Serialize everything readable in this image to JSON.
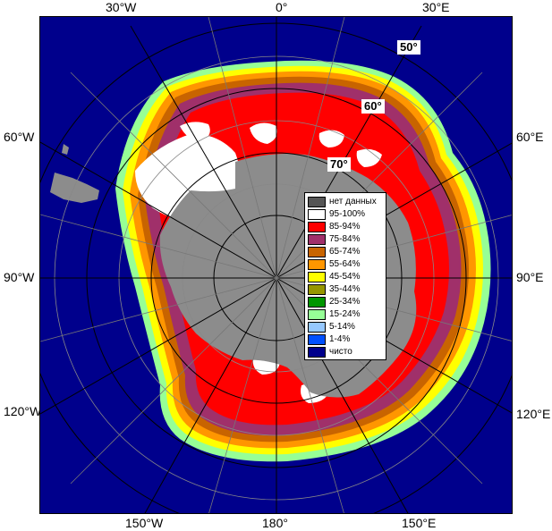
{
  "map": {
    "longitude_labels": [
      "30°W",
      "0°",
      "30°E",
      "60°W",
      "60°E",
      "90°W",
      "90°E",
      "120°W",
      "120°E",
      "150°W",
      "180°",
      "150°E"
    ],
    "latitude_labels": [
      "50°",
      "60°",
      "70°"
    ],
    "colors": {
      "open_water": "#00008c",
      "land": "#8c8c8c",
      "ice_shelf": "#8c8c8c",
      "no_data": "#555555",
      "conc_95_100": "#ffffff",
      "conc_85_94": "#ff0000",
      "conc_75_84": "#a0306a",
      "conc_65_74": "#c86400",
      "conc_55_64": "#ff9600",
      "conc_45_54": "#ffff00",
      "conc_35_44": "#969600",
      "conc_25_34": "#009600",
      "conc_15_24": "#96ff96",
      "conc_5_14": "#96c8ff",
      "conc_1_4": "#0050ff"
    }
  },
  "legend": {
    "items": [
      {
        "label": "нет данных",
        "color": "#555555"
      },
      {
        "label": "95-100%",
        "color": "#ffffff"
      },
      {
        "label": "85-94%",
        "color": "#ff0000"
      },
      {
        "label": "75-84%",
        "color": "#a0306a"
      },
      {
        "label": "65-74%",
        "color": "#c86400"
      },
      {
        "label": "55-64%",
        "color": "#ff9600"
      },
      {
        "label": "45-54%",
        "color": "#ffff00"
      },
      {
        "label": "35-44%",
        "color": "#969600"
      },
      {
        "label": "25-34%",
        "color": "#009600"
      },
      {
        "label": "15-24%",
        "color": "#96ff96"
      },
      {
        "label": "5-14%",
        "color": "#96c8ff"
      },
      {
        "label": "1-4%",
        "color": "#0050ff"
      },
      {
        "label": "чисто",
        "color": "#00008c"
      }
    ]
  }
}
